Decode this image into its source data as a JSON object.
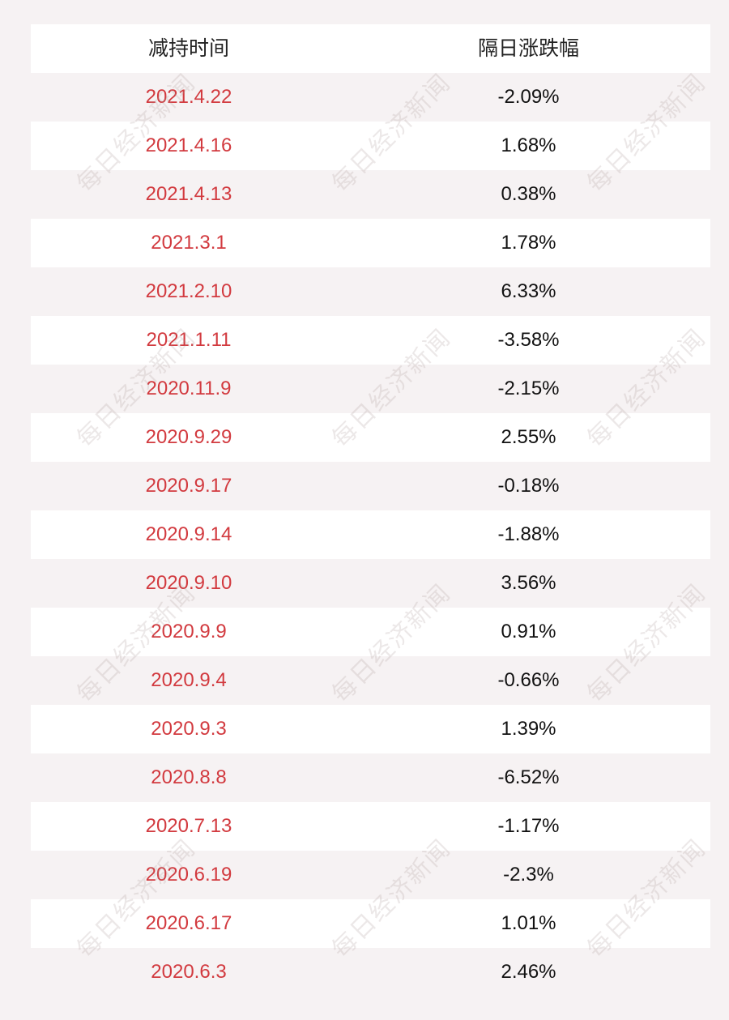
{
  "table": {
    "headers": {
      "date": "减持时间",
      "change": "隔日涨跌幅"
    },
    "rows": [
      {
        "date": "2021.4.22",
        "change": "-2.09%"
      },
      {
        "date": "2021.4.16",
        "change": "1.68%"
      },
      {
        "date": "2021.4.13",
        "change": "0.38%"
      },
      {
        "date": "2021.3.1",
        "change": "1.78%"
      },
      {
        "date": "2021.2.10",
        "change": "6.33%"
      },
      {
        "date": "2021.1.11",
        "change": "-3.58%"
      },
      {
        "date": "2020.11.9",
        "change": "-2.15%"
      },
      {
        "date": "2020.9.29",
        "change": "2.55%"
      },
      {
        "date": "2020.9.17",
        "change": "-0.18%"
      },
      {
        "date": "2020.9.14",
        "change": "-1.88%"
      },
      {
        "date": "2020.9.10",
        "change": "3.56%"
      },
      {
        "date": "2020.9.9",
        "change": "0.91%"
      },
      {
        "date": "2020.9.4",
        "change": "-0.66%"
      },
      {
        "date": "2020.9.3",
        "change": "1.39%"
      },
      {
        "date": "2020.8.8",
        "change": "-6.52%"
      },
      {
        "date": "2020.7.13",
        "change": "-1.17%"
      },
      {
        "date": "2020.6.19",
        "change": "-2.3%"
      },
      {
        "date": "2020.6.17",
        "change": "1.01%"
      },
      {
        "date": "2020.6.3",
        "change": "2.46%"
      }
    ]
  },
  "watermark": "每日经济新闻",
  "colors": {
    "date_text": "#d23a3f",
    "change_text": "#111111",
    "background": "#f6f2f3"
  }
}
